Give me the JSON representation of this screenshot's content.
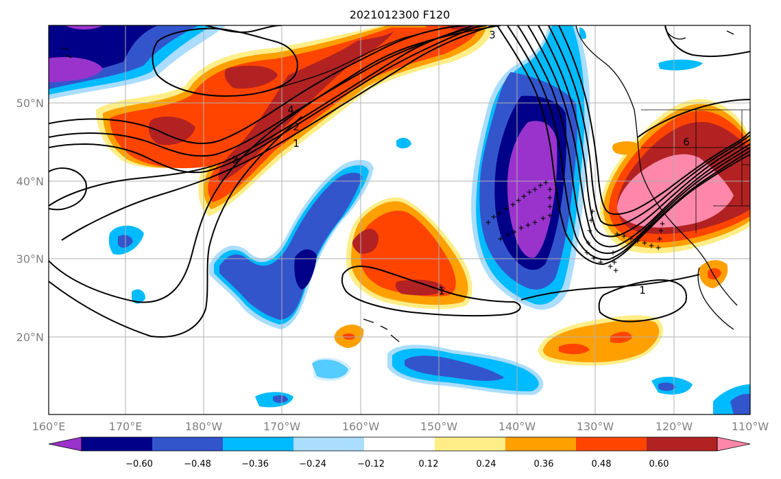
{
  "title": "2021012300 F120",
  "lat_labels": [
    "50°N",
    "40°N",
    "30°N",
    "20°N"
  ],
  "lon_labels": [
    "160°E",
    "170°E",
    "180°W",
    "170°W",
    "160°W",
    "150°W",
    "140°W",
    "130°W",
    "120°W",
    "110°W"
  ],
  "colorbar": {
    "ticks": [
      "−0.60",
      "−0.48",
      "−0.36",
      "−0.24",
      "−0.12",
      "0.12",
      "0.24",
      "0.36",
      "0.48",
      "0.60"
    ],
    "colors": [
      "#9933cc",
      "#000088",
      "#3355cc",
      "#00bbff",
      "#aaddff",
      "#ffffff",
      "#ffee88",
      "#ffa000",
      "#ff4400",
      "#b22222",
      "#ff88aa"
    ]
  },
  "contour_labels": [
    "3",
    "4",
    "2",
    "1",
    "3",
    "1",
    "1",
    "6"
  ]
}
